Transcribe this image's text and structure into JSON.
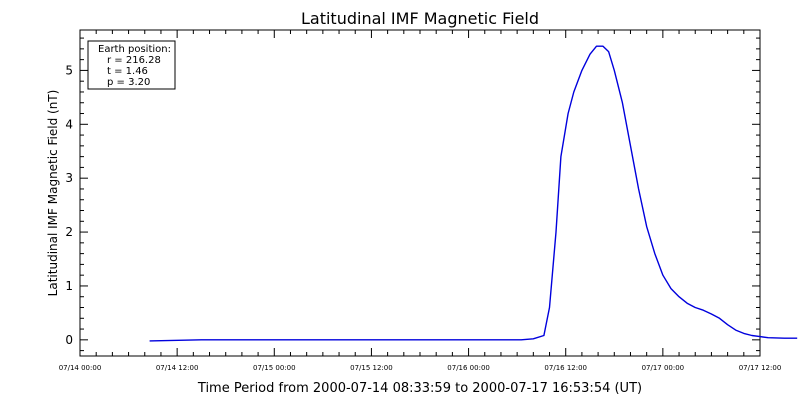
{
  "chart_data": {
    "type": "line",
    "title": "Latitudinal IMF Magnetic Field",
    "xlabel": "Time Period from 2000-07-14 08:33:59 to 2000-07-17 16:53:54 (UT)",
    "ylabel": "Latitudinal IMF Magnetic Field (nT)",
    "xlim": [
      0,
      84
    ],
    "ylim": [
      -0.3,
      5.75
    ],
    "x_unit": "hours since 07/14 00:00",
    "x_ticks": [
      {
        "value": 0,
        "label": "07/14 00:00"
      },
      {
        "value": 12,
        "label": "07/14 12:00"
      },
      {
        "value": 24,
        "label": "07/15 00:00"
      },
      {
        "value": 36,
        "label": "07/15 12:00"
      },
      {
        "value": 48,
        "label": "07/16 00:00"
      },
      {
        "value": 60,
        "label": "07/16 12:00"
      },
      {
        "value": 72,
        "label": "07/17 00:00"
      },
      {
        "value": 84,
        "label": "07/17 12:00"
      }
    ],
    "y_ticks": [
      {
        "value": 0,
        "label": "0"
      },
      {
        "value": 1,
        "label": "1"
      },
      {
        "value": 2,
        "label": "2"
      },
      {
        "value": 3,
        "label": "3"
      },
      {
        "value": 4,
        "label": "4"
      },
      {
        "value": 5,
        "label": "5"
      }
    ],
    "series": [
      {
        "color": "#0000dd",
        "points": [
          [
            8.6,
            -0.02
          ],
          [
            15,
            0.0
          ],
          [
            30,
            0.0
          ],
          [
            45,
            0.0
          ],
          [
            54.5,
            0.0
          ],
          [
            56,
            0.02
          ],
          [
            57.3,
            0.08
          ],
          [
            58,
            0.6
          ],
          [
            58.8,
            2.0
          ],
          [
            59.4,
            3.4
          ],
          [
            60.3,
            4.2
          ],
          [
            61,
            4.6
          ],
          [
            62,
            5.0
          ],
          [
            63,
            5.3
          ],
          [
            63.8,
            5.45
          ],
          [
            64.6,
            5.45
          ],
          [
            65.3,
            5.35
          ],
          [
            66,
            5.0
          ],
          [
            67,
            4.4
          ],
          [
            68,
            3.6
          ],
          [
            69,
            2.8
          ],
          [
            70,
            2.1
          ],
          [
            71,
            1.6
          ],
          [
            72,
            1.2
          ],
          [
            73,
            0.95
          ],
          [
            74,
            0.8
          ],
          [
            75,
            0.68
          ],
          [
            76,
            0.6
          ],
          [
            77,
            0.55
          ],
          [
            78,
            0.48
          ],
          [
            79,
            0.4
          ],
          [
            80,
            0.28
          ],
          [
            81,
            0.18
          ],
          [
            82,
            0.12
          ],
          [
            83,
            0.08
          ],
          [
            84,
            0.06
          ],
          [
            85,
            0.04
          ],
          [
            87,
            0.03
          ],
          [
            88.6,
            0.03
          ]
        ]
      }
    ],
    "legend": {
      "placement": "top-left",
      "lines": [
        "Earth position:",
        "r = 216.28",
        "t = 1.46",
        "p = 3.20"
      ]
    }
  }
}
